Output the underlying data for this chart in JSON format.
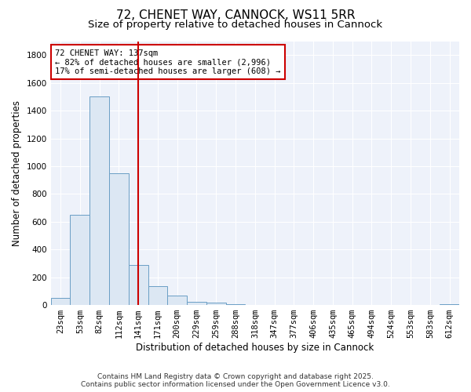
{
  "title": "72, CHENET WAY, CANNOCK, WS11 5RR",
  "subtitle": "Size of property relative to detached houses in Cannock",
  "xlabel": "Distribution of detached houses by size in Cannock",
  "ylabel": "Number of detached properties",
  "categories": [
    "23sqm",
    "53sqm",
    "82sqm",
    "112sqm",
    "141sqm",
    "171sqm",
    "200sqm",
    "229sqm",
    "259sqm",
    "288sqm",
    "318sqm",
    "347sqm",
    "377sqm",
    "406sqm",
    "435sqm",
    "465sqm",
    "494sqm",
    "524sqm",
    "553sqm",
    "583sqm",
    "612sqm"
  ],
  "values": [
    50,
    650,
    1500,
    950,
    290,
    135,
    70,
    25,
    15,
    5,
    2,
    1,
    1,
    0,
    0,
    0,
    0,
    0,
    0,
    0,
    5
  ],
  "bar_color": "#dce7f3",
  "bar_edge_color": "#6a9ec5",
  "vline_x": 4.0,
  "vline_color": "#cc0000",
  "annotation_text": "72 CHENET WAY: 137sqm\n← 82% of detached houses are smaller (2,996)\n17% of semi-detached houses are larger (608) →",
  "annotation_box_color": "#ffffff",
  "annotation_box_edge_color": "#cc0000",
  "ylim": [
    0,
    1900
  ],
  "yticks": [
    0,
    200,
    400,
    600,
    800,
    1000,
    1200,
    1400,
    1600,
    1800
  ],
  "footer_line1": "Contains HM Land Registry data © Crown copyright and database right 2025.",
  "footer_line2": "Contains public sector information licensed under the Open Government Licence v3.0.",
  "bg_color": "#ffffff",
  "plot_bg_color": "#eef2fa",
  "title_fontsize": 11,
  "subtitle_fontsize": 9.5,
  "axis_label_fontsize": 8.5,
  "tick_fontsize": 7.5,
  "annotation_fontsize": 7.5,
  "footer_fontsize": 6.5
}
